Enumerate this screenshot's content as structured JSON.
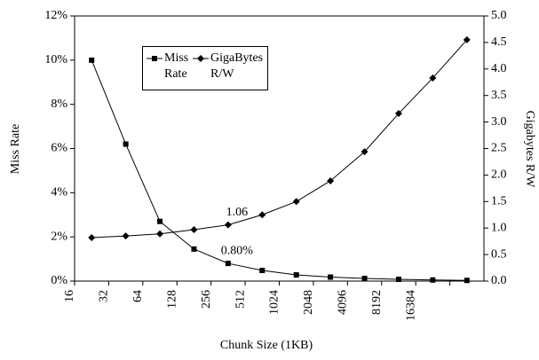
{
  "chart_data": {
    "type": "line",
    "x_label": "Chunk Size (1KB)",
    "y_label": "Miss Rate",
    "y2_label": "Gigabytes R/W",
    "categories": [
      "16",
      "32",
      "64",
      "128",
      "256",
      "512",
      "1024",
      "2048",
      "4096",
      "8192",
      "16384",
      null
    ],
    "series": [
      {
        "name": "Miss Rate",
        "color": "#000000",
        "marker": "square",
        "values": [
          10.0,
          6.2,
          2.7,
          1.45,
          0.8,
          0.48,
          0.28,
          0.18,
          0.12,
          0.08,
          0.05,
          0.03
        ],
        "value_labels": [
          null,
          null,
          null,
          null,
          "0.80%",
          null,
          null,
          null,
          null,
          null,
          null,
          null
        ]
      },
      {
        "name": "GigaBytes R/W",
        "color": "#000000",
        "marker": "diamond",
        "axis": "y2",
        "values": [
          0.82,
          0.85,
          0.89,
          0.97,
          1.06,
          1.25,
          1.5,
          1.89,
          2.44,
          3.16,
          3.83,
          4.55
        ],
        "value_labels": [
          null,
          null,
          null,
          null,
          "1.06",
          null,
          null,
          null,
          null,
          null,
          null,
          null
        ]
      }
    ],
    "ylim": [
      0,
      12
    ],
    "yticks": [
      {
        "value": 0,
        "label": "0%"
      },
      {
        "value": 2,
        "label": "2%"
      },
      {
        "value": 4,
        "label": "4%"
      },
      {
        "value": 6,
        "label": "6%"
      },
      {
        "value": 8,
        "label": "8%"
      },
      {
        "value": 10,
        "label": "10%"
      },
      {
        "value": 12,
        "label": "12%"
      }
    ],
    "y2lim": [
      0,
      5
    ],
    "y2ticks": [
      {
        "value": 0,
        "label": "0.0"
      },
      0.5,
      {
        "value": 1,
        "label": "1.0"
      },
      1.5,
      {
        "value": 2,
        "label": "2.0"
      },
      2.5,
      {
        "value": 3,
        "label": "3.0"
      },
      3.5,
      {
        "value": 4,
        "label": "4.0"
      },
      4.5,
      {
        "value": 5,
        "label": "5.0"
      }
    ],
    "grid": false
  }
}
